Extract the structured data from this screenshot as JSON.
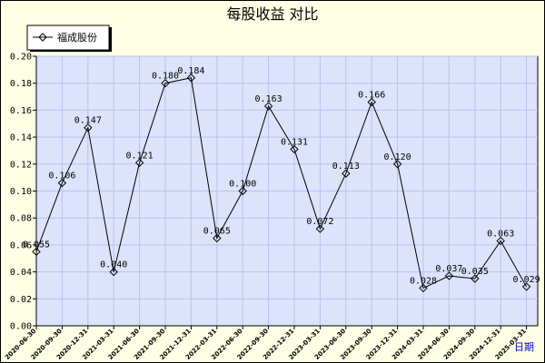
{
  "chart_data": {
    "type": "line",
    "title": "每股收益  对比",
    "legend": {
      "placement": "top-left",
      "entries": [
        "福成股份"
      ]
    },
    "period_label": "日期",
    "x": [
      "2020-06-30",
      "2020-09-30",
      "2020-12-31",
      "2021-03-31",
      "2021-06-30",
      "2021-09-30",
      "2021-12-31",
      "2022-03-31",
      "2022-06-30",
      "2022-09-30",
      "2022-12-31",
      "2023-03-31",
      "2023-06-30",
      "2023-09-30",
      "2023-12-31",
      "2024-03-31",
      "2024-06-30",
      "2024-09-30",
      "2024-12-31",
      "2025-03-31"
    ],
    "series": [
      {
        "name": "福成股份",
        "values": [
          0.055,
          0.106,
          0.147,
          0.04,
          0.121,
          0.18,
          0.184,
          0.065,
          0.1,
          0.163,
          0.131,
          0.072,
          0.113,
          0.166,
          0.12,
          0.028,
          0.037,
          0.035,
          0.063,
          0.029
        ],
        "labels": [
          "0.055",
          "0.106",
          "0.147",
          "0.040",
          "0.121",
          "0.180",
          "0.184",
          "0.065",
          "0.100",
          "0.163",
          "0.131",
          "0.072",
          "0.113",
          "0.166",
          "0.120",
          "0.028",
          "0.037",
          "0.035",
          "0.063",
          "0.029"
        ]
      }
    ],
    "ylim": [
      0,
      0.2
    ],
    "yticks": [
      "0.00",
      "0.02",
      "0.04",
      "0.06",
      "0.08",
      "0.10",
      "0.12",
      "0.14",
      "0.16",
      "0.18",
      "0.20"
    ],
    "grid": true,
    "colors": {
      "plot_bg": "#dde3fb",
      "grid": "#b8c2ee",
      "frame_bg": "#ffffe6",
      "line": "#000000"
    }
  }
}
